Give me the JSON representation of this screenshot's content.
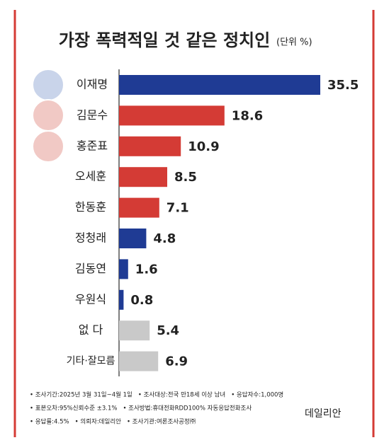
{
  "chart_data": {
    "type": "bar",
    "orientation": "horizontal",
    "title": "가장 폭력적일 것 같은 정치인",
    "subtitle": "(단위 %)",
    "categories": [
      "이재명",
      "김문수",
      "홍준표",
      "오세훈",
      "한동훈",
      "정청래",
      "김동연",
      "우원식",
      "없 다",
      "기타·잘모름"
    ],
    "values": [
      35.5,
      18.6,
      10.9,
      8.5,
      7.1,
      4.8,
      1.6,
      0.8,
      5.4,
      6.9
    ],
    "colors": [
      "#1f3b94",
      "#d43b35",
      "#d43b35",
      "#d43b35",
      "#d43b35",
      "#1f3b94",
      "#1f3b94",
      "#1f3b94",
      "#c9c9c9",
      "#c9c9c9"
    ],
    "notes": [
      [
        "• 조사기간:2025년 3월 31일~4월 1일",
        "• 조사대상:전국 만18세 이상 남녀",
        "• 응답자수:1,000명"
      ],
      [
        "• 표본오차:95%신뢰수준 ±3.1%",
        "• 조사방법:휴대전화RDD100% 자동응답전화조사"
      ],
      [
        "• 응답률:4.5%",
        "• 의뢰자:데일리안",
        "• 조사기관:여론조사공정㈜"
      ]
    ],
    "source": "데일리안"
  }
}
